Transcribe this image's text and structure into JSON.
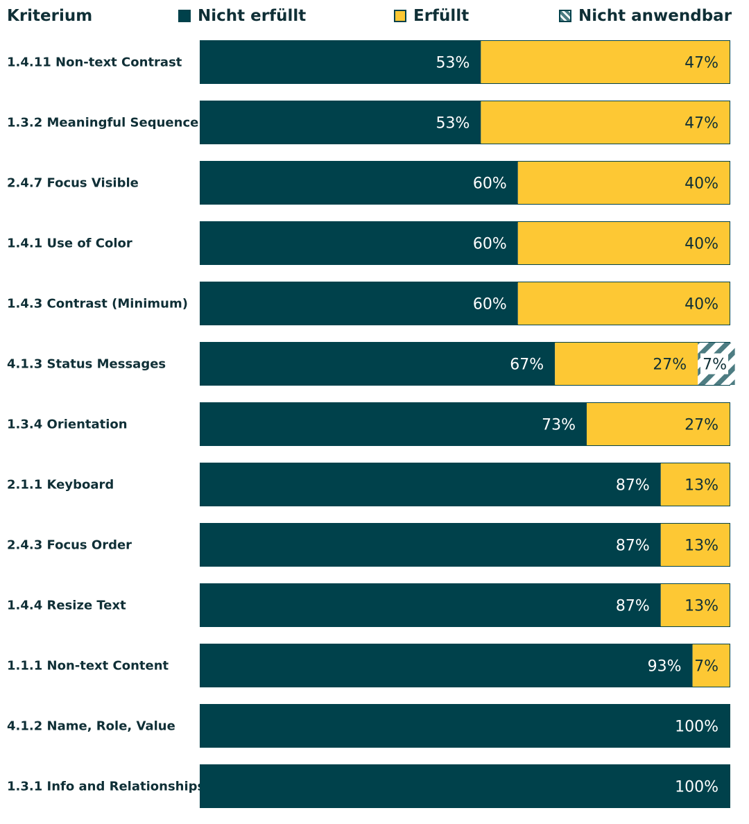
{
  "header": {
    "title": "Kriterium"
  },
  "colors": {
    "nicht_erfuellt": "#00414b",
    "erfuellt": "#fdc834",
    "nicht_anwendbar": "#ffffff",
    "hatch": "#4d7c82",
    "text_dark": "#0f2f36"
  },
  "legend": [
    {
      "key": "nicht_erfuellt",
      "label": "Nicht erfüllt",
      "icon": "solid-square"
    },
    {
      "key": "erfuellt",
      "label": "Erfüllt",
      "icon": "solid-square"
    },
    {
      "key": "nicht_anwendbar",
      "label": "Nicht anwendbar",
      "icon": "hatched-square"
    }
  ],
  "chart_data": {
    "type": "bar",
    "orientation": "horizontal",
    "stacked": true,
    "normalized": true,
    "xlim": [
      0,
      100
    ],
    "categories": [
      "1.4.11 Non-text Contrast",
      "1.3.2 Meaningful Sequence",
      "2.4.7 Focus Visible",
      "1.4.1 Use of Color",
      "1.4.3 Contrast (Minimum)",
      "4.1.3 Status Messages",
      "1.3.4 Orientation",
      "2.1.1 Keyboard",
      "2.4.3 Focus Order",
      "1.4.4 Resize Text",
      "1.1.1 Non-text Content",
      "4.1.2 Name, Role, Value",
      "1.3.1 Info and Relationships"
    ],
    "series": [
      {
        "name": "Nicht erfüllt",
        "values": [
          53,
          53,
          60,
          60,
          60,
          67,
          73,
          87,
          87,
          87,
          93,
          100,
          100
        ]
      },
      {
        "name": "Erfüllt",
        "values": [
          47,
          47,
          40,
          40,
          40,
          27,
          27,
          13,
          13,
          13,
          7,
          0,
          0
        ]
      },
      {
        "name": "Nicht anwendbar",
        "values": [
          0,
          0,
          0,
          0,
          0,
          7,
          0,
          0,
          0,
          0,
          0,
          0,
          0
        ]
      }
    ],
    "value_labels": [
      [
        "53%",
        "47%",
        ""
      ],
      [
        "53%",
        "47%",
        ""
      ],
      [
        "60%",
        "40%",
        ""
      ],
      [
        "60%",
        "40%",
        ""
      ],
      [
        "60%",
        "40%",
        ""
      ],
      [
        "67%",
        "27%",
        "7%"
      ],
      [
        "73%",
        "27%",
        ""
      ],
      [
        "87%",
        "13%",
        ""
      ],
      [
        "87%",
        "13%",
        ""
      ],
      [
        "87%",
        "13%",
        ""
      ],
      [
        "93%",
        "7%",
        ""
      ],
      [
        "100%",
        "",
        ""
      ],
      [
        "100%",
        "",
        ""
      ]
    ],
    "legend_position": "top",
    "grid": false
  }
}
